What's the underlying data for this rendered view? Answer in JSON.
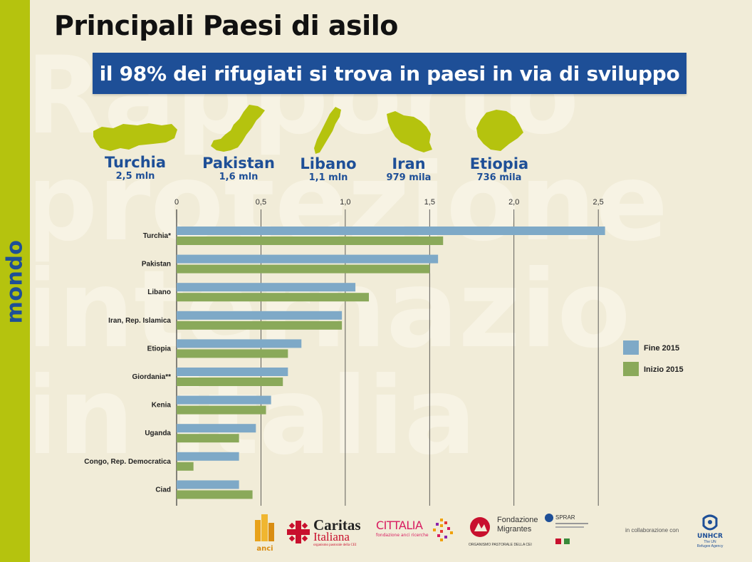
{
  "side_label": "mondo",
  "title": "Principali Paesi di asilo",
  "subtitle": "il 98% dei rifugiati si trova in paesi in via di sviluppo",
  "countries": [
    {
      "name": "Turchia",
      "value": "2,5 mln"
    },
    {
      "name": "Pakistan",
      "value": "1,6 mln"
    },
    {
      "name": "Libano",
      "value": "1,1 mln"
    },
    {
      "name": "Iran",
      "value": "979 mila"
    },
    {
      "name": "Etiopia",
      "value": "736 mila"
    }
  ],
  "colors": {
    "accent": "#1e4f97",
    "strip": "#b5c30e",
    "fine": "#7ea9c7",
    "inizio": "#8aa95a",
    "background": "#f1ecd8"
  },
  "chart_data": {
    "type": "bar",
    "orientation": "horizontal",
    "categories": [
      "Turchia*",
      "Pakistan",
      "Libano",
      "Iran, Rep. Islamica",
      "Etiopia",
      "Giordania**",
      "Kenia",
      "Uganda",
      "Congo, Rep. Democratica",
      "Ciad"
    ],
    "series": [
      {
        "name": "Fine 2015",
        "values": [
          2.54,
          1.55,
          1.06,
          0.98,
          0.74,
          0.66,
          0.56,
          0.47,
          0.37,
          0.37
        ]
      },
      {
        "name": "Inizio 2015",
        "values": [
          1.58,
          1.5,
          1.14,
          0.98,
          0.66,
          0.63,
          0.53,
          0.37,
          0.1,
          0.45
        ]
      }
    ],
    "ticks": [
      "0",
      "0,5",
      "1,0",
      "1,5",
      "2,0",
      "2,5"
    ],
    "tick_values": [
      0,
      0.5,
      1.0,
      1.5,
      2.0,
      2.5
    ],
    "xlim": [
      0,
      2.55
    ],
    "grid": true,
    "legend_position": "right"
  },
  "logos": {
    "anci": "anci",
    "caritas_1": "Caritas",
    "caritas_2": "Italiana",
    "caritas_3": "organismo pastorale della CEI",
    "cittalia": "CITTALIA",
    "cittalia_sub": "fondazione anci ricerche",
    "migrantes_1": "Fondazione",
    "migrantes_2": "Migrantes",
    "migrantes_3": "ORGANISMO PASTORALE DELLA CEI",
    "sprar": "SPRAR",
    "collab": "in collaborazione con",
    "unhcr": "UNHCR",
    "unhcr_sub_1": "The UN",
    "unhcr_sub_2": "Refugee Agency"
  }
}
